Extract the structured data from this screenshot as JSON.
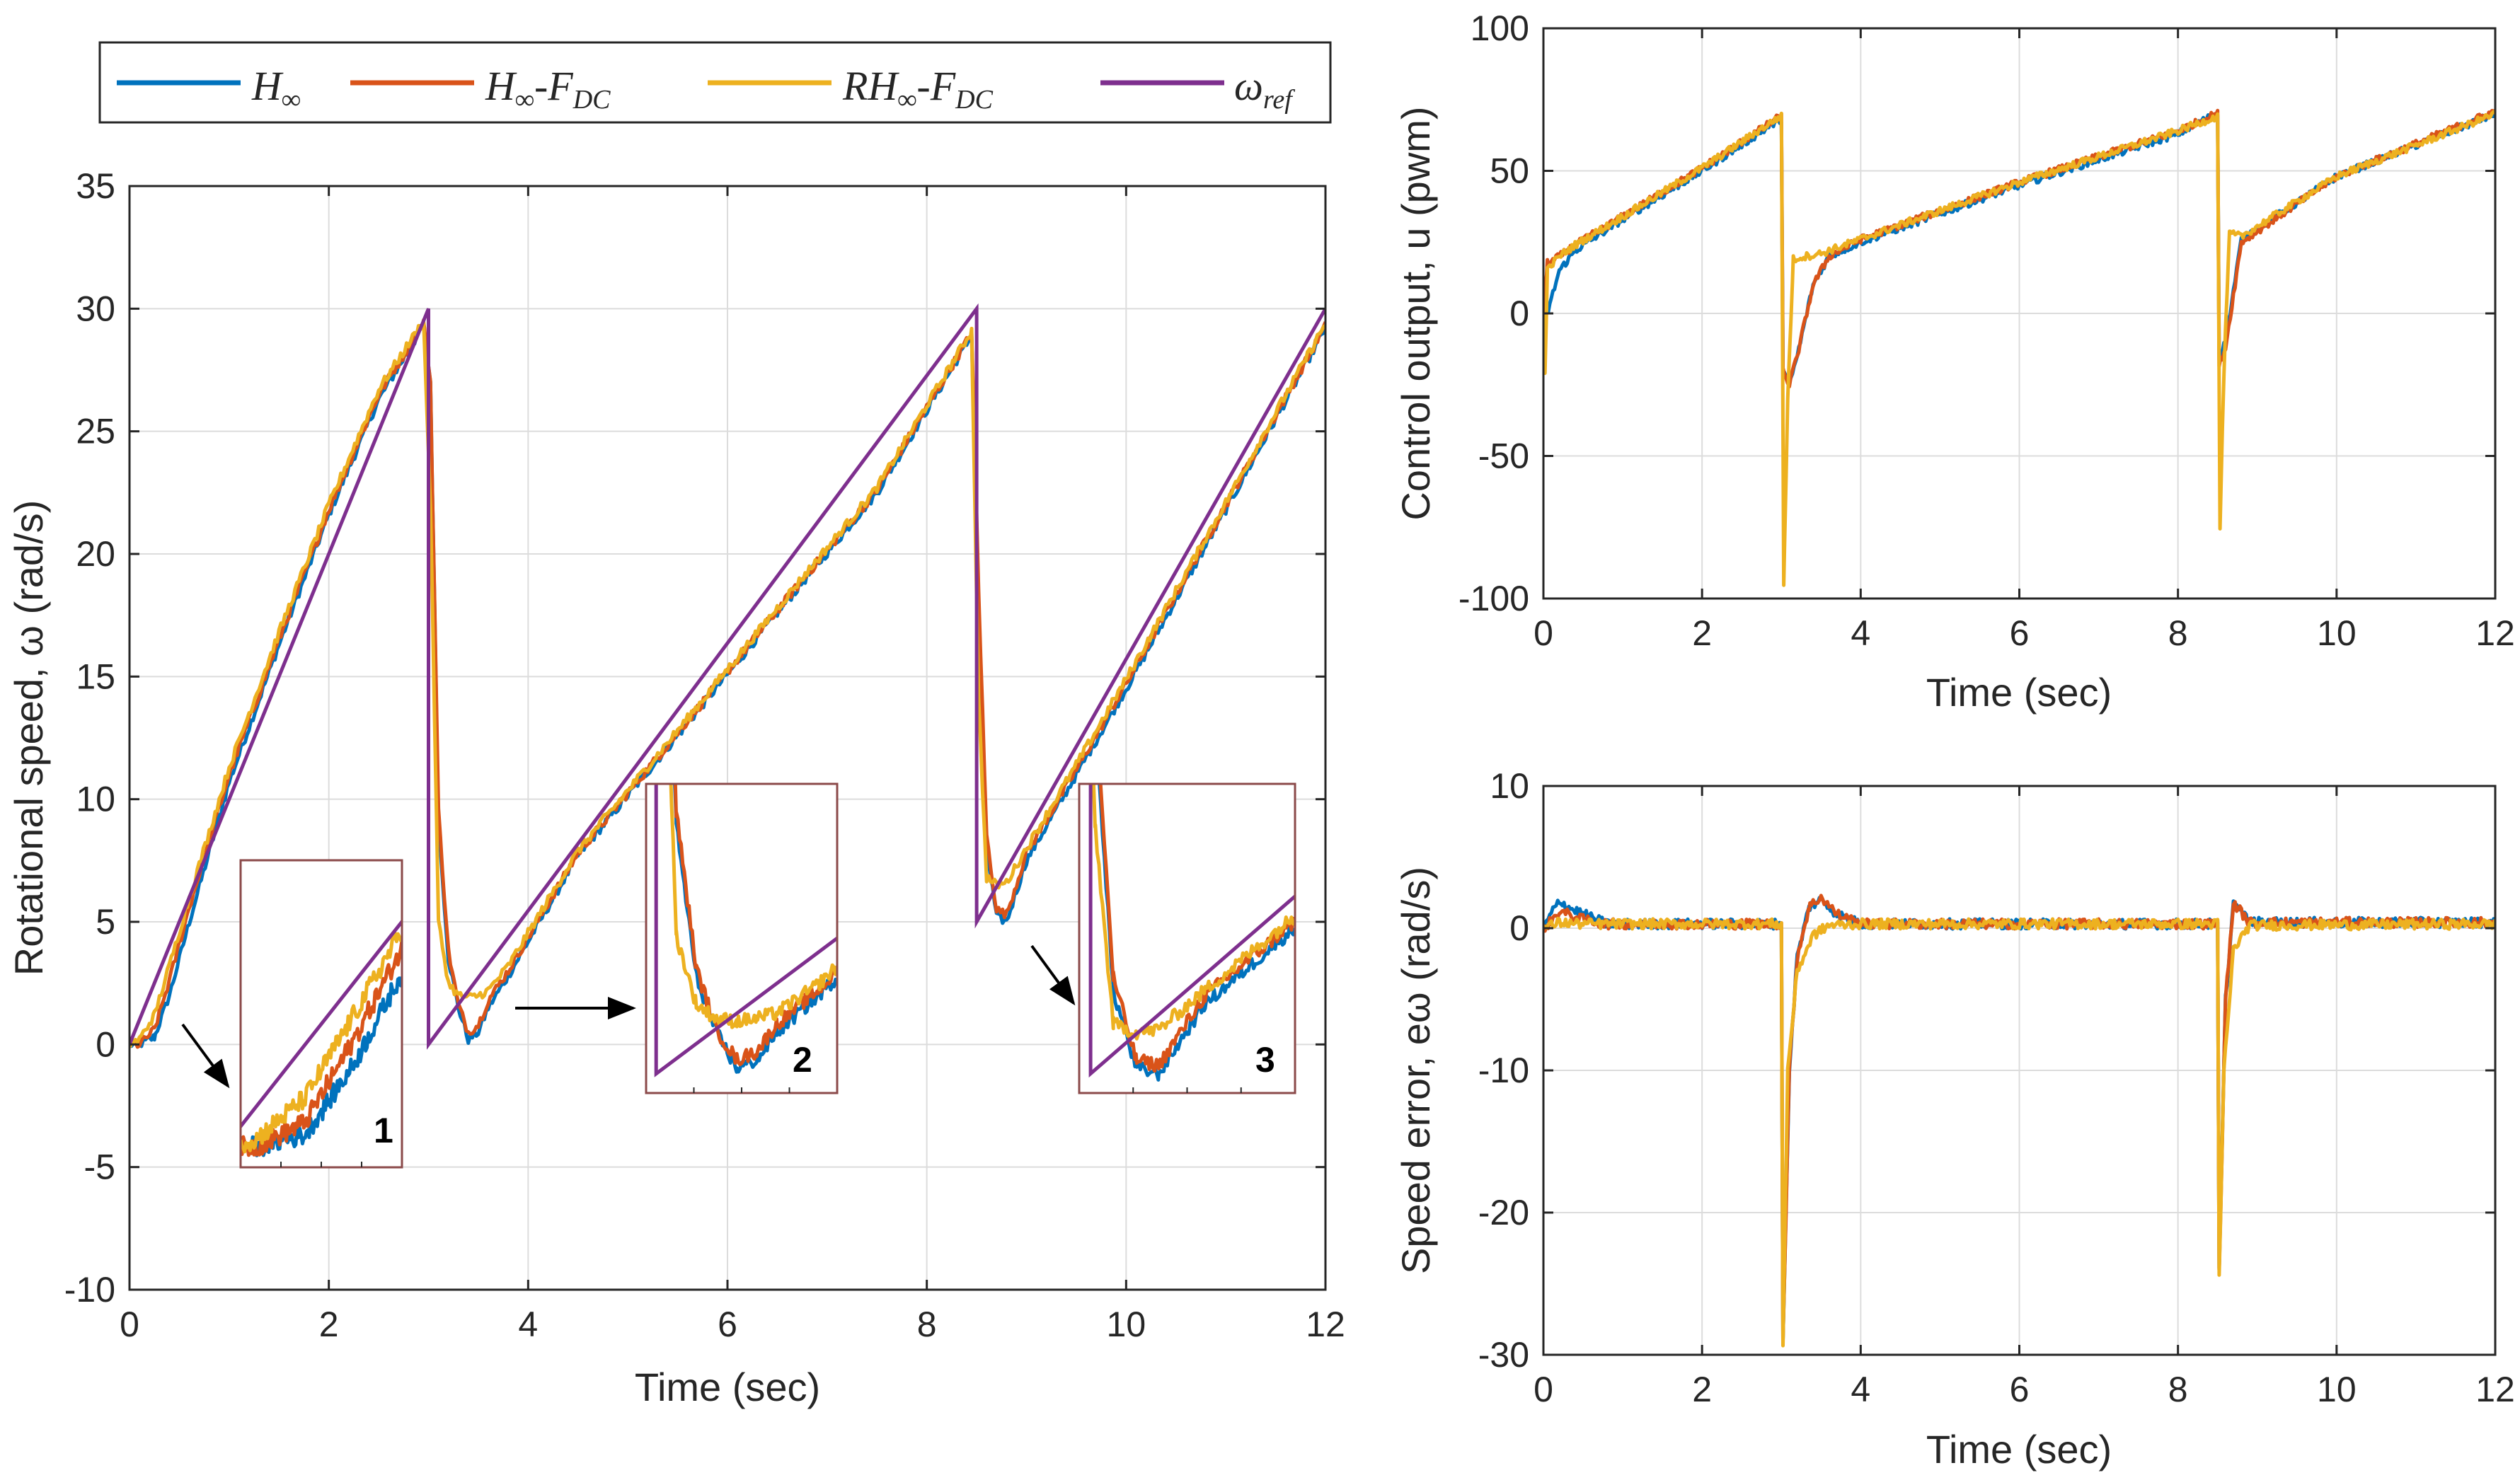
{
  "colors": {
    "series_1": "#0072BD",
    "series_2": "#D95319",
    "series_3": "#EDB120",
    "series_4": "#7E2F8E",
    "inset_border": "#8B4A4A",
    "grid": "#dcdcdc",
    "axis": "#262626"
  },
  "legend": {
    "entries": [
      {
        "base": "H",
        "sub": "∞",
        "suffix": "",
        "suffix_sub": "",
        "color": "#0072BD"
      },
      {
        "base": "H",
        "sub": "∞",
        "suffix": "-F",
        "suffix_sub": "DC",
        "color": "#D95319"
      },
      {
        "base": "RH",
        "sub": "∞",
        "suffix": "-F",
        "suffix_sub": "DC",
        "color": "#EDB120"
      },
      {
        "base": "ω",
        "sub": "ref",
        "suffix": "",
        "suffix_sub": "",
        "color": "#7E2F8E"
      }
    ]
  },
  "chart_data": [
    {
      "id": "speed",
      "type": "line",
      "title": "",
      "xlabel": "Time (sec)",
      "ylabel": "Rotational speed, ω (rad/s)",
      "xlim": [
        0,
        12
      ],
      "ylim": [
        -10,
        35
      ],
      "xticks": [
        0,
        2,
        4,
        6,
        8,
        10,
        12
      ],
      "yticks": [
        -10,
        -5,
        0,
        5,
        10,
        15,
        20,
        25,
        30,
        35
      ],
      "grid": true,
      "reference": {
        "name": "ω_ref",
        "x": [
          0,
          3,
          3,
          8.5,
          8.5,
          12
        ],
        "y": [
          0,
          30,
          0,
          30,
          5,
          30
        ]
      },
      "series": [
        {
          "name": "H∞",
          "x": [
            0,
            0.1,
            0.25,
            0.4,
            0.6,
            1.0,
            1.5,
            2.0,
            2.5,
            2.95,
            3.02,
            3.1,
            3.2,
            3.3,
            3.4,
            3.5,
            3.6,
            3.8,
            4.5,
            5.5,
            6.5,
            7.5,
            8.45,
            8.52,
            8.6,
            8.7,
            8.8,
            9.0,
            9.5,
            10.0,
            11.0,
            12.0
          ],
          "y": [
            0,
            0,
            0.3,
            2.0,
            5.0,
            10.7,
            16.3,
            21.6,
            26.3,
            29.3,
            27.0,
            9.0,
            3.5,
            1.5,
            0.2,
            0.5,
            1.5,
            2.8,
            7.7,
            12.6,
            17.6,
            22.5,
            28.9,
            18.0,
            8.0,
            5.2,
            5.0,
            7.5,
            11.0,
            14.5,
            21.8,
            29.2
          ]
        },
        {
          "name": "H∞-FDC",
          "x": [
            0,
            0.1,
            0.25,
            0.4,
            0.6,
            1.0,
            1.5,
            2.0,
            2.5,
            2.95,
            3.02,
            3.1,
            3.2,
            3.3,
            3.4,
            3.5,
            3.6,
            3.8,
            4.5,
            5.5,
            6.5,
            7.5,
            8.45,
            8.52,
            8.6,
            8.7,
            8.8,
            9.0,
            9.5,
            10.0,
            11.0,
            12.0
          ],
          "y": [
            0,
            0,
            0.6,
            2.6,
            5.6,
            11.0,
            16.5,
            21.8,
            26.5,
            29.4,
            27.0,
            9.5,
            3.8,
            1.6,
            0.5,
            0.8,
            1.8,
            3.0,
            7.8,
            12.7,
            17.7,
            22.6,
            29.0,
            18.5,
            8.5,
            5.5,
            5.3,
            7.8,
            11.2,
            14.7,
            22.0,
            29.3
          ]
        },
        {
          "name": "RH∞-FDC",
          "x": [
            0,
            0.1,
            0.25,
            0.4,
            0.6,
            1.0,
            1.5,
            2.0,
            2.5,
            2.95,
            3.02,
            3.1,
            3.2,
            3.3,
            3.4,
            3.5,
            3.6,
            3.8,
            4.5,
            5.5,
            6.5,
            7.5,
            8.45,
            8.52,
            8.6,
            8.7,
            8.8,
            9.0,
            9.5,
            10.0,
            11.0,
            12.0
          ],
          "y": [
            0,
            0.2,
            1.2,
            3.2,
            6.0,
            11.3,
            16.8,
            22.0,
            26.7,
            29.5,
            22.0,
            5.0,
            2.5,
            2.0,
            1.9,
            2.0,
            2.2,
            3.2,
            7.9,
            12.8,
            17.8,
            22.7,
            29.1,
            14.0,
            6.8,
            6.5,
            6.6,
            8.0,
            11.4,
            14.9,
            22.1,
            29.4
          ]
        }
      ]
    },
    {
      "id": "control",
      "type": "line",
      "title": "",
      "xlabel": "Time (sec)",
      "ylabel": "Control output, u (pwm)",
      "xlim": [
        0,
        12
      ],
      "ylim": [
        -100,
        100
      ],
      "xticks": [
        0,
        2,
        4,
        6,
        8,
        10,
        12
      ],
      "yticks": [
        -100,
        -50,
        0,
        50,
        100
      ],
      "grid": true,
      "series": [
        {
          "name": "H∞",
          "x": [
            0,
            0.05,
            0.1,
            0.2,
            0.4,
            1.0,
            2.0,
            2.98,
            3.0,
            3.02,
            3.1,
            3.2,
            3.4,
            3.6,
            4.0,
            6.0,
            8.0,
            8.48,
            8.5,
            8.52,
            8.6,
            8.8,
            10.0,
            12.0
          ],
          "y": [
            0,
            0,
            5,
            15,
            22,
            33,
            50,
            68,
            68,
            -20,
            -25,
            -15,
            10,
            20,
            25,
            45,
            63,
            70,
            70,
            -15,
            -10,
            26,
            48,
            70
          ]
        },
        {
          "name": "H∞-FDC",
          "x": [
            0,
            0.05,
            0.1,
            0.2,
            0.4,
            1.0,
            2.0,
            2.98,
            3.0,
            3.02,
            3.1,
            3.2,
            3.4,
            3.6,
            4.0,
            6.0,
            8.0,
            8.48,
            8.5,
            8.52,
            8.6,
            8.8,
            10.0,
            12.0
          ],
          "y": [
            0,
            18,
            18,
            20,
            24,
            34,
            51,
            69,
            69,
            -20,
            -25,
            -15,
            10,
            20,
            26,
            46,
            64,
            70,
            70,
            -18,
            -12,
            25,
            48,
            71
          ]
        },
        {
          "name": "RH∞-FDC",
          "x": [
            0,
            0.02,
            0.05,
            0.1,
            0.2,
            0.4,
            1.0,
            2.0,
            2.98,
            3.0,
            3.03,
            3.08,
            3.15,
            3.3,
            3.5,
            4.0,
            6.0,
            8.0,
            8.48,
            8.5,
            8.53,
            8.58,
            8.65,
            8.8,
            10.0,
            12.0
          ],
          "y": [
            0,
            -20,
            15,
            17,
            20,
            24,
            34,
            51,
            69,
            69,
            -95,
            -30,
            19,
            20,
            21,
            26,
            46,
            64,
            69,
            69,
            -75,
            -20,
            28,
            27,
            48,
            70
          ]
        }
      ]
    },
    {
      "id": "error",
      "type": "line",
      "title": "",
      "xlabel": "Time (sec)",
      "ylabel": "Speed error, eω (rad/s)",
      "xlim": [
        0,
        12
      ],
      "ylim": [
        -30,
        10
      ],
      "xticks": [
        0,
        2,
        4,
        6,
        8,
        10,
        12
      ],
      "yticks": [
        -30,
        -20,
        -10,
        0,
        10
      ],
      "grid": true,
      "series": [
        {
          "name": "H∞",
          "x": [
            0,
            0.1,
            0.2,
            0.3,
            0.5,
            0.8,
            2.98,
            3.0,
            3.02,
            3.1,
            3.2,
            3.35,
            3.5,
            3.7,
            4.0,
            8.48,
            8.5,
            8.52,
            8.6,
            8.7,
            8.9,
            12.0
          ],
          "y": [
            0,
            1.0,
            2.0,
            1.5,
            1.0,
            0.3,
            0.3,
            0.3,
            -29,
            -10,
            -2,
            1.5,
            2.0,
            1.0,
            0.3,
            0.3,
            0.3,
            -24,
            -5,
            1.8,
            0.4,
            0.4
          ]
        },
        {
          "name": "H∞-FDC",
          "x": [
            0,
            0.1,
            0.2,
            0.3,
            0.5,
            0.8,
            2.98,
            3.0,
            3.02,
            3.1,
            3.2,
            3.35,
            3.5,
            3.7,
            4.0,
            8.48,
            8.5,
            8.52,
            8.6,
            8.7,
            8.9,
            12.0
          ],
          "y": [
            0,
            0.5,
            1.2,
            1.0,
            0.6,
            0.3,
            0.3,
            0.3,
            -29,
            -10,
            -2,
            1.5,
            2.2,
            1.0,
            0.3,
            0.3,
            0.3,
            -24,
            -5,
            1.8,
            0.4,
            0.4
          ]
        },
        {
          "name": "RH∞-FDC",
          "x": [
            0,
            0.2,
            0.5,
            2.98,
            3.0,
            3.02,
            3.08,
            3.2,
            3.4,
            3.6,
            4.0,
            8.48,
            8.5,
            8.52,
            8.58,
            8.7,
            8.9,
            12.0
          ],
          "y": [
            0,
            0.4,
            0.3,
            0.3,
            0.3,
            -29.5,
            -10,
            -3,
            -0.5,
            0.2,
            0.3,
            0.3,
            0.3,
            -24.5,
            -10,
            -1.5,
            0.2,
            0.3
          ]
        }
      ]
    }
  ],
  "insets": [
    {
      "label": "1",
      "xlim": [
        0.05,
        0.55
      ],
      "ylim": [
        -0.5,
        7.0
      ]
    },
    {
      "label": "2",
      "xlim": [
        2.95,
        3.9
      ],
      "ylim": [
        -0.7,
        10.5
      ]
    },
    {
      "label": "3",
      "xlim": [
        8.45,
        9.4
      ],
      "ylim": [
        4.3,
        15.5
      ]
    }
  ]
}
